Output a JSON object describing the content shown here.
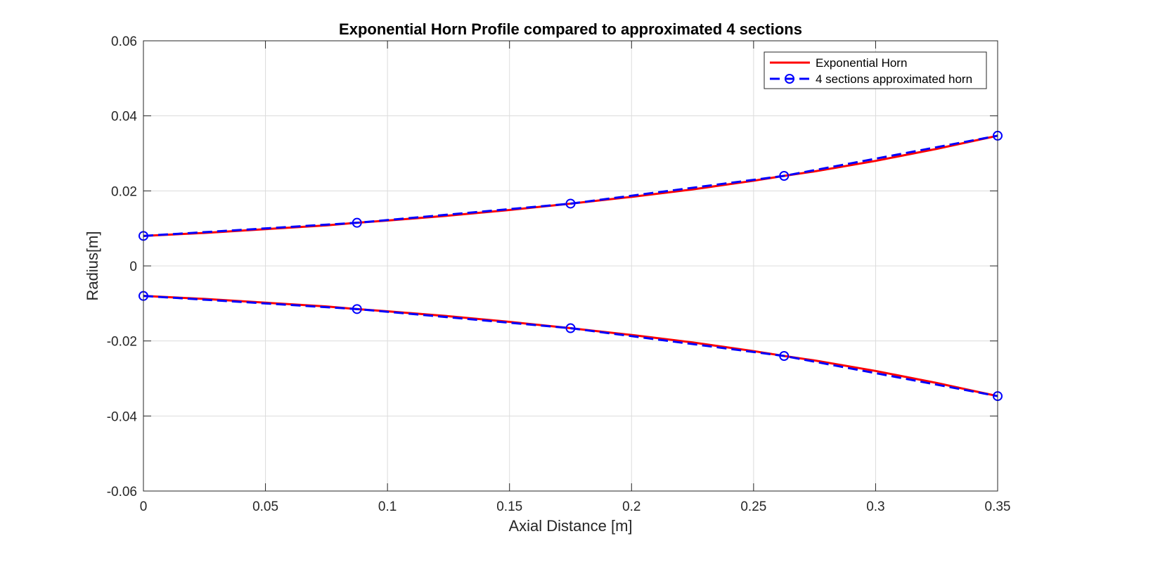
{
  "chart_data": {
    "type": "line",
    "title": "Exponential Horn Profile compared to approximated 4 sections",
    "xlabel": "Axial Distance [m]",
    "ylabel": "Radius[m]",
    "xlim": [
      0,
      0.35
    ],
    "ylim": [
      -0.06,
      0.06
    ],
    "xticks": [
      0,
      0.05,
      0.1,
      0.15,
      0.2,
      0.25,
      0.3,
      0.35
    ],
    "xtick_labels": [
      "0",
      "0.05",
      "0.1",
      "0.15",
      "0.2",
      "0.25",
      "0.3",
      "0.35"
    ],
    "yticks": [
      -0.06,
      -0.04,
      -0.02,
      0,
      0.02,
      0.04,
      0.06
    ],
    "ytick_labels": [
      "-0.06",
      "-0.04",
      "-0.02",
      "0",
      "0.02",
      "0.04",
      "0.06"
    ],
    "grid": true,
    "legend_position": "top-right",
    "series": [
      {
        "name": "Exponential Horn",
        "color": "#ff0000",
        "style": "solid",
        "marker": "none",
        "parts": [
          {
            "x": [
              0,
              0.025,
              0.05,
              0.075,
              0.0875,
              0.1,
              0.125,
              0.15,
              0.175,
              0.2,
              0.225,
              0.25,
              0.2625,
              0.275,
              0.3,
              0.325,
              0.35
            ],
            "y": [
              0.008,
              0.0088,
              0.0098,
              0.0108,
              0.0115,
              0.0121,
              0.0134,
              0.0149,
              0.0166,
              0.0184,
              0.0204,
              0.0227,
              0.024,
              0.0252,
              0.028,
              0.0312,
              0.0347
            ]
          },
          {
            "x": [
              0,
              0.025,
              0.05,
              0.075,
              0.0875,
              0.1,
              0.125,
              0.15,
              0.175,
              0.2,
              0.225,
              0.25,
              0.2625,
              0.275,
              0.3,
              0.325,
              0.35
            ],
            "y": [
              -0.008,
              -0.0088,
              -0.0098,
              -0.0108,
              -0.0115,
              -0.0121,
              -0.0134,
              -0.0149,
              -0.0166,
              -0.0184,
              -0.0204,
              -0.0227,
              -0.024,
              -0.0252,
              -0.028,
              -0.0312,
              -0.0347
            ]
          }
        ]
      },
      {
        "name": "4 sections approximated horn",
        "color": "#0000ff",
        "style": "dashed",
        "marker": "circle",
        "parts": [
          {
            "x": [
              0,
              0.0875,
              0.175,
              0.2625,
              0.35
            ],
            "y": [
              0.008,
              0.0115,
              0.0166,
              0.024,
              0.0347
            ]
          },
          {
            "x": [
              0,
              0.0875,
              0.175,
              0.2625,
              0.35
            ],
            "y": [
              -0.008,
              -0.0115,
              -0.0166,
              -0.024,
              -0.0347
            ]
          }
        ]
      }
    ]
  }
}
